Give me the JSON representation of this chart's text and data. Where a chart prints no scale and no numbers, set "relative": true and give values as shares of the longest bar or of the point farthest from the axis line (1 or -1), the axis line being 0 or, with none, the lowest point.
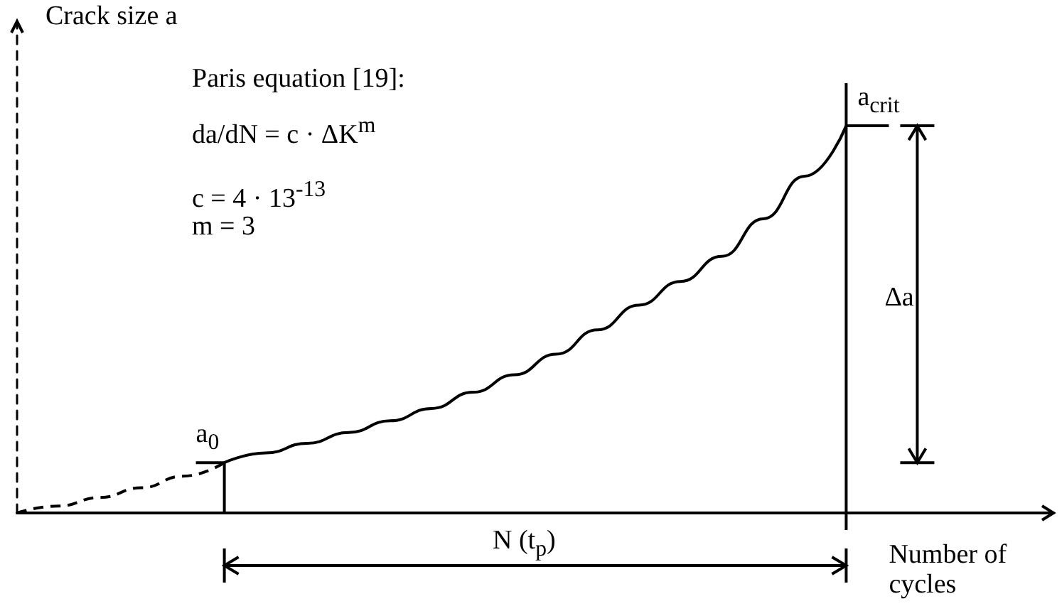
{
  "chart_data": {
    "type": "line",
    "relative": true,
    "xlabel": "Number of cycles",
    "ylabel": "Crack size a",
    "categories": [
      null,
      null,
      null,
      null,
      null,
      null,
      null,
      null,
      null,
      null,
      null,
      null,
      null,
      null,
      null,
      null,
      null,
      null,
      null,
      null,
      null,
      null,
      null,
      null,
      null,
      null
    ],
    "series": [
      {
        "color": "#000000",
        "line_style": "dashed",
        "values": [
          0,
          0.018,
          0.04,
          0.065,
          0.095,
          0.13,
          null,
          null,
          null,
          null,
          null,
          null,
          null,
          null,
          null,
          null,
          null,
          null,
          null,
          null,
          null,
          null,
          null,
          null,
          null,
          null
        ]
      },
      {
        "color": "#000000",
        "line_style": "solid",
        "values": [
          null,
          null,
          null,
          null,
          null,
          0.13,
          0.155,
          0.18,
          0.208,
          0.238,
          0.27,
          0.312,
          0.357,
          0.41,
          0.473,
          0.537,
          0.598,
          0.663,
          0.76,
          0.87,
          1,
          null,
          null,
          null,
          null,
          null
        ]
      }
    ],
    "marker": "none",
    "grid": false,
    "annotations": [
      "Paris equation [19]:",
      "da/dN = c · ΔK$^{m}$",
      "c = 4 · 13$^{-13}$",
      "m = 3",
      "a$_{0}$",
      "a$_{crit}$",
      "Δa",
      "N (t$_{p}$)"
    ]
  }
}
